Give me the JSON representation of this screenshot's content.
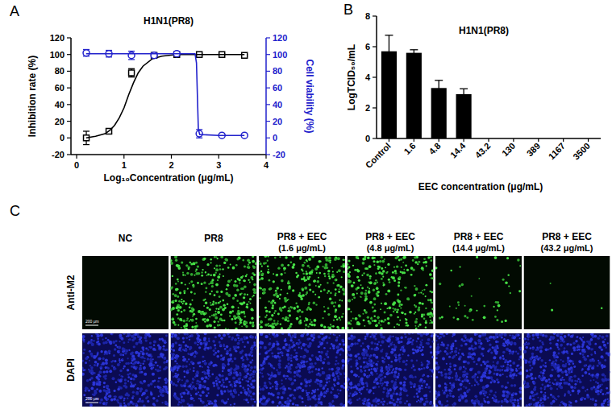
{
  "panel_labels": [
    "A",
    "B",
    "C"
  ],
  "chart_data": [
    {
      "type": "scatter",
      "title": "H1N1(PR8)",
      "x_label": "Log₁₀Concentration (μg/mL)",
      "y_label": "Inhibition rate (%)",
      "y2_label": "Cell viability (%)",
      "xlim": [
        -0.12,
        4
      ],
      "xticks": [
        0,
        1,
        2,
        3,
        4
      ],
      "ylim": [
        -20,
        120
      ],
      "yticks": [
        -20,
        0,
        20,
        40,
        60,
        80,
        100,
        120
      ],
      "y2lim": [
        -20,
        120
      ],
      "y2ticks": [
        -20,
        0,
        20,
        40,
        60,
        80,
        100,
        120
      ],
      "series": [
        {
          "type": "scatter",
          "color": "#000000",
          "marker": "square",
          "x": [
            0.204,
            0.681,
            1.158,
            1.635,
            2.114,
            2.59,
            3.067,
            3.544
          ],
          "values": [
            0,
            8,
            78,
            99,
            100,
            100,
            100,
            99
          ],
          "errors": [
            8,
            2,
            5,
            2,
            1,
            1,
            1,
            1
          ]
        },
        {
          "type": "line",
          "color": "#000000",
          "line_style": "solid",
          "x": [
            0.2,
            0.4,
            0.6,
            0.7,
            0.8,
            0.9,
            1.0,
            1.1,
            1.2,
            1.3,
            1.4,
            1.6,
            1.8,
            2.1,
            2.6,
            3.0,
            3.544
          ],
          "values": [
            0,
            2,
            5,
            9,
            15,
            24,
            36,
            52,
            66,
            78,
            86,
            95,
            98,
            100,
            100,
            100,
            100
          ]
        },
        {
          "type": "scatter",
          "color": "#2222cc",
          "marker": "circle",
          "axis": "y2",
          "x": [
            0.204,
            0.681,
            1.158,
            1.635,
            2.114,
            2.59,
            3.067,
            3.544
          ],
          "values": [
            102,
            101,
            99,
            99,
            101,
            5,
            3,
            3
          ],
          "errors": [
            4,
            4,
            5,
            3,
            2,
            5,
            1,
            1
          ]
        },
        {
          "type": "line",
          "color": "#2222cc",
          "line_style": "solid",
          "axis": "y2",
          "x": [
            0.2,
            1.0,
            2.0,
            2.5,
            2.53,
            2.55,
            2.57,
            2.6,
            3.0,
            3.544
          ],
          "values": [
            101,
            101,
            101,
            101,
            90,
            50,
            10,
            4,
            3,
            3
          ]
        }
      ]
    },
    {
      "type": "bar",
      "title": "H1N1(PR8)",
      "x_label": "EEC concentration (μg/mL)",
      "y_label": "LogTCID₅₀/mL",
      "categories": [
        "Control",
        "1.6",
        "4.8",
        "14.4",
        "43.2",
        "130",
        "389",
        "1167",
        "3500"
      ],
      "values": [
        5.7,
        5.6,
        3.3,
        2.9,
        0,
        0,
        0,
        0,
        0
      ],
      "errors": [
        1.05,
        0.2,
        0.5,
        0.35,
        0,
        0,
        0,
        0,
        0
      ],
      "color": "#000000",
      "ylim": [
        0,
        8
      ],
      "yticks": [
        0,
        2,
        4,
        6,
        8
      ]
    }
  ],
  "images": {
    "columns": [
      {
        "title": "NC"
      },
      {
        "title": "PR8"
      },
      {
        "title": "PR8 + EEC",
        "subtitle": "(1.6  μg/mL)"
      },
      {
        "title": "PR8 + EEC",
        "subtitle": "(4.8 μg/mL)"
      },
      {
        "title": "PR8 + EEC",
        "subtitle": "(14.4 μg/mL)"
      },
      {
        "title": "PR8 + EEC",
        "subtitle": "(43.2 μg/mL)"
      }
    ],
    "rows": [
      "Anti-M2",
      "DAPI"
    ],
    "scale_bar": "200 μm"
  }
}
